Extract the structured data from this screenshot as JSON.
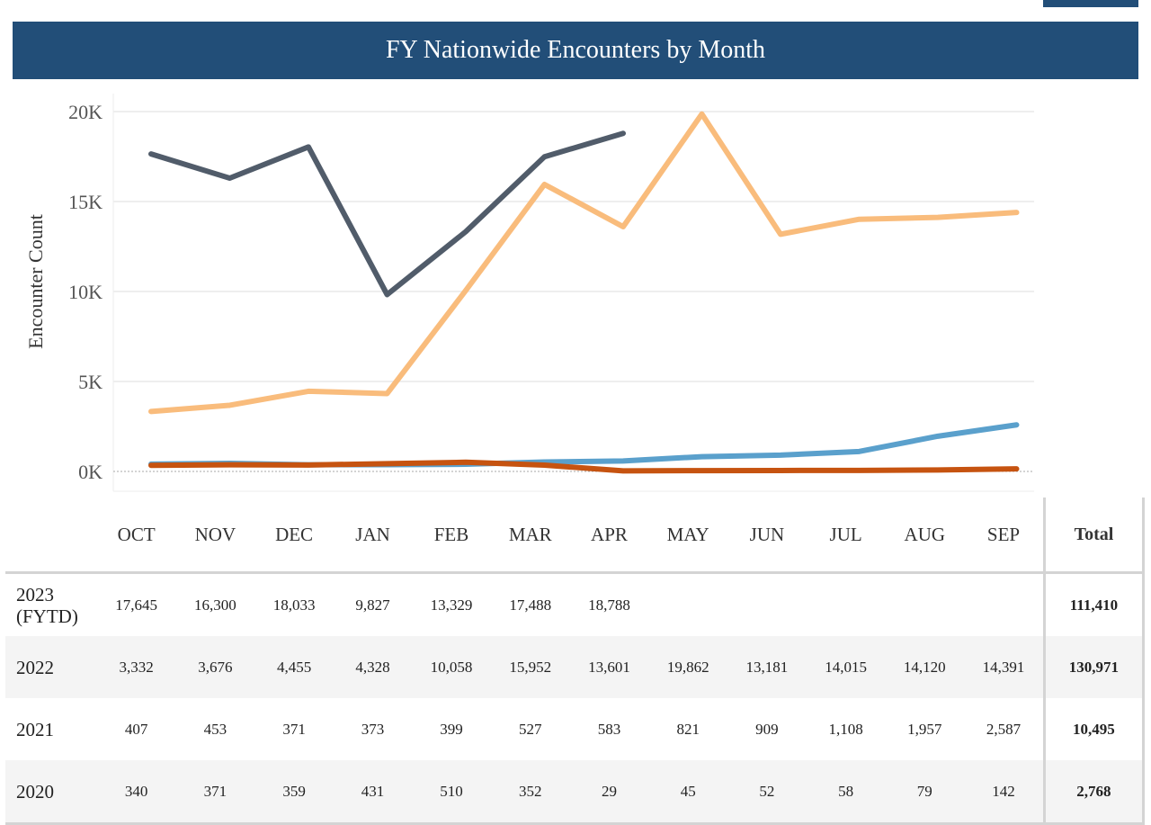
{
  "header": {
    "title": "FY Nationwide Encounters by Month"
  },
  "colors": {
    "banner": "#224e78",
    "2023": "#515c6a",
    "2022": "#f9bc7c",
    "2021": "#5aa0cc",
    "2020": "#c65310"
  },
  "chart_data": {
    "type": "line",
    "title": "FY Nationwide Encounters by Month",
    "xlabel": "",
    "ylabel": "Encounter Count",
    "ylim": [
      0,
      20000
    ],
    "yticks": [
      0,
      5000,
      10000,
      15000,
      20000
    ],
    "ytick_labels": [
      "0K",
      "5K",
      "10K",
      "15K",
      "20K"
    ],
    "grid": true,
    "categories": [
      "OCT",
      "NOV",
      "DEC",
      "JAN",
      "FEB",
      "MAR",
      "APR",
      "MAY",
      "JUN",
      "JUL",
      "AUG",
      "SEP"
    ],
    "series": [
      {
        "name": "2023 (FYTD)",
        "color": "#515c6a",
        "values": [
          17645,
          16300,
          18033,
          9827,
          13329,
          17488,
          18788,
          null,
          null,
          null,
          null,
          null
        ]
      },
      {
        "name": "2022",
        "color": "#f9bc7c",
        "values": [
          3332,
          3676,
          4455,
          4328,
          10058,
          15952,
          13601,
          19862,
          13181,
          14015,
          14120,
          14391
        ]
      },
      {
        "name": "2021",
        "color": "#5aa0cc",
        "values": [
          407,
          453,
          371,
          373,
          399,
          527,
          583,
          821,
          909,
          1108,
          1957,
          2587
        ]
      },
      {
        "name": "2020",
        "color": "#c65310",
        "values": [
          340,
          371,
          359,
          431,
          510,
          352,
          29,
          45,
          52,
          58,
          79,
          142
        ]
      }
    ]
  },
  "table": {
    "corner": "",
    "months": [
      "OCT",
      "NOV",
      "DEC",
      "JAN",
      "FEB",
      "MAR",
      "APR",
      "MAY",
      "JUN",
      "JUL",
      "AUG",
      "SEP"
    ],
    "total_label": "Total",
    "rows": [
      {
        "year": "2023 (FYTD)",
        "cells": [
          "17,645",
          "16,300",
          "18,033",
          "9,827",
          "13,329",
          "17,488",
          "18,788",
          "",
          "",
          "",
          "",
          ""
        ],
        "total": "111,410"
      },
      {
        "year": "2022",
        "cells": [
          "3,332",
          "3,676",
          "4,455",
          "4,328",
          "10,058",
          "15,952",
          "13,601",
          "19,862",
          "13,181",
          "14,015",
          "14,120",
          "14,391"
        ],
        "total": "130,971"
      },
      {
        "year": "2021",
        "cells": [
          "407",
          "453",
          "371",
          "373",
          "399",
          "527",
          "583",
          "821",
          "909",
          "1,108",
          "1,957",
          "2,587"
        ],
        "total": "10,495"
      },
      {
        "year": "2020",
        "cells": [
          "340",
          "371",
          "359",
          "431",
          "510",
          "352",
          "29",
          "45",
          "52",
          "58",
          "79",
          "142"
        ],
        "total": "2,768"
      }
    ]
  }
}
